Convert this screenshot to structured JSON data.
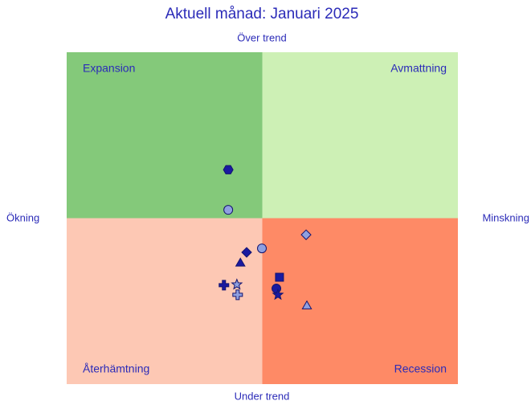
{
  "chart_data": {
    "type": "scatter",
    "title": "Aktuell månad: Januari 2025",
    "top_label": "Över trend",
    "bottom_label": "Under trend",
    "left_label": "Ökning",
    "right_label": "Minskning",
    "xlim": [
      0,
      100
    ],
    "ylim": [
      0,
      100
    ],
    "quadrants": [
      {
        "label": "Expansion",
        "color": "#84c97a"
      },
      {
        "label": "Avmattning",
        "color": "#cdf0b5"
      },
      {
        "label": "Återhämtning",
        "color": "#fdc8b4"
      },
      {
        "label": "Recession",
        "color": "#fe8a66"
      }
    ],
    "points": [
      {
        "x": 41.3,
        "y": 64.6,
        "shape": "hexagon",
        "color": "#1a1aa0"
      },
      {
        "x": 41.3,
        "y": 52.5,
        "shape": "circle",
        "color": "#8fa0e0"
      },
      {
        "x": 49.9,
        "y": 40.9,
        "shape": "circle",
        "color": "#8fa0e0"
      },
      {
        "x": 61.2,
        "y": 45.0,
        "shape": "diamond",
        "color": "#8fa0e0"
      },
      {
        "x": 46.0,
        "y": 39.7,
        "shape": "diamond",
        "color": "#1a1aa0"
      },
      {
        "x": 44.4,
        "y": 36.6,
        "shape": "triangle",
        "color": "#1a1aa0"
      },
      {
        "x": 54.4,
        "y": 32.2,
        "shape": "square",
        "color": "#1a1aa0"
      },
      {
        "x": 53.6,
        "y": 28.8,
        "shape": "circle",
        "color": "#1a1aa0"
      },
      {
        "x": 54.0,
        "y": 26.9,
        "shape": "star",
        "color": "#1a1aa0"
      },
      {
        "x": 61.4,
        "y": 23.7,
        "shape": "triangle",
        "color": "#8fa0e0"
      },
      {
        "x": 40.2,
        "y": 29.8,
        "shape": "plus",
        "color": "#1a1aa0"
      },
      {
        "x": 43.5,
        "y": 30.0,
        "shape": "star",
        "color": "#8fa0e0"
      },
      {
        "x": 43.7,
        "y": 26.9,
        "shape": "plus",
        "color": "#8fa0e0"
      }
    ]
  }
}
